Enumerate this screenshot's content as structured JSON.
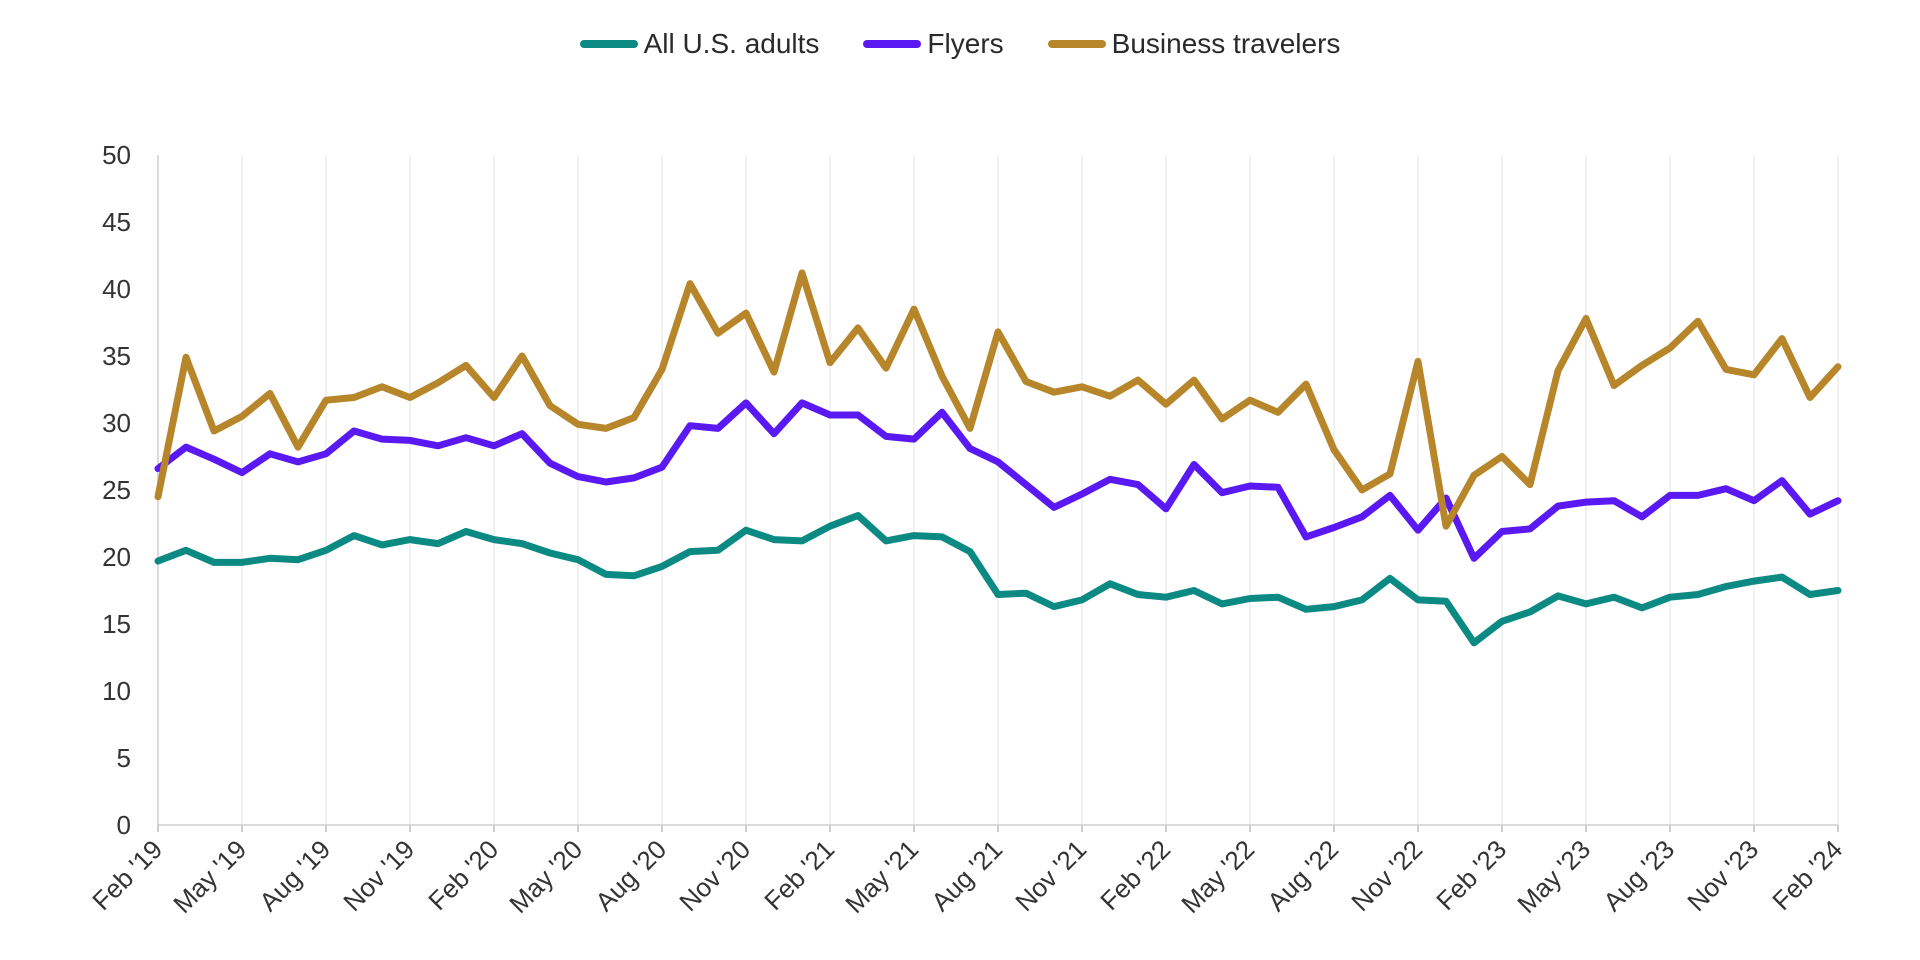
{
  "chart_data": {
    "type": "line",
    "title": "",
    "xlabel": "",
    "ylabel": "",
    "ylim": [
      0,
      50
    ],
    "yticks": [
      0,
      5,
      10,
      15,
      20,
      25,
      30,
      35,
      40,
      45,
      50
    ],
    "xtick_labels": [
      "Feb '19",
      "May '19",
      "Aug '19",
      "Nov '19",
      "Feb '20",
      "May '20",
      "Aug '20",
      "Nov '20",
      "Feb '21",
      "May '21",
      "Aug '21",
      "Nov '21",
      "Feb '22",
      "May '22",
      "Aug '22",
      "Nov '22",
      "Feb '23",
      "May '23",
      "Aug '23",
      "Nov '23",
      "Feb '24"
    ],
    "x": [
      "Feb '19",
      "Mar '19",
      "Apr '19",
      "May '19",
      "Jun '19",
      "Jul '19",
      "Aug '19",
      "Sep '19",
      "Oct '19",
      "Nov '19",
      "Dec '19",
      "Jan '20",
      "Feb '20",
      "Mar '20",
      "Apr '20",
      "May '20",
      "Jun '20",
      "Jul '20",
      "Aug '20",
      "Sep '20",
      "Oct '20",
      "Nov '20",
      "Dec '20",
      "Jan '21",
      "Feb '21",
      "Mar '21",
      "Apr '21",
      "May '21",
      "Jun '21",
      "Jul '21",
      "Aug '21",
      "Sep '21",
      "Oct '21",
      "Nov '21",
      "Dec '21",
      "Jan '22",
      "Feb '22",
      "Mar '22",
      "Apr '22",
      "May '22",
      "Jun '22",
      "Jul '22",
      "Aug '22",
      "Sep '22",
      "Oct '22",
      "Nov '22",
      "Dec '22",
      "Jan '23",
      "Feb '23",
      "Mar '23",
      "Apr '23",
      "May '23",
      "Jun '23",
      "Jul '23",
      "Aug '23",
      "Sep '23",
      "Oct '23",
      "Nov '23",
      "Dec '23",
      "Jan '24",
      "Feb '24"
    ],
    "grid": "vertical",
    "legend_position": "top-center",
    "series": [
      {
        "name": "All U.S. adults",
        "color": "#0b8a83",
        "values": [
          19.7,
          20.5,
          19.6,
          19.6,
          19.9,
          19.8,
          20.5,
          21.6,
          20.9,
          21.3,
          21.0,
          21.9,
          21.3,
          21.0,
          20.3,
          19.8,
          18.7,
          18.6,
          19.3,
          20.4,
          20.5,
          22.0,
          21.3,
          21.2,
          22.3,
          23.1,
          21.2,
          21.6,
          21.5,
          20.4,
          17.2,
          17.3,
          16.3,
          16.8,
          18.0,
          17.2,
          17.0,
          17.5,
          16.5,
          16.9,
          17.0,
          16.1,
          16.3,
          16.8,
          18.4,
          16.8,
          16.7,
          13.6,
          15.2,
          15.9,
          17.1,
          16.5,
          17.0,
          16.2,
          17.0,
          17.2,
          17.8,
          18.2,
          18.5,
          17.2,
          17.5
        ]
      },
      {
        "name": "Flyers",
        "color": "#5a19f2",
        "values": [
          26.6,
          28.2,
          27.3,
          26.3,
          27.7,
          27.1,
          27.7,
          29.4,
          28.8,
          28.7,
          28.3,
          28.9,
          28.3,
          29.2,
          27.0,
          26.0,
          25.6,
          25.9,
          26.7,
          29.8,
          29.6,
          31.5,
          29.2,
          31.5,
          30.6,
          30.6,
          29.0,
          28.8,
          30.8,
          28.1,
          27.1,
          25.4,
          23.7,
          24.7,
          25.8,
          25.4,
          23.6,
          26.9,
          24.8,
          25.3,
          25.2,
          21.5,
          22.2,
          23.0,
          24.6,
          22.0,
          24.4,
          19.9,
          21.9,
          22.1,
          23.8,
          24.1,
          24.2,
          23.0,
          24.6,
          24.6,
          25.1,
          24.2,
          25.7,
          23.2,
          24.2
        ]
      },
      {
        "name": "Business travelers",
        "color": "#b7862b",
        "values": [
          24.5,
          34.9,
          29.4,
          30.5,
          32.2,
          28.2,
          31.7,
          31.9,
          32.7,
          31.9,
          33.0,
          34.3,
          31.9,
          35.0,
          31.3,
          29.9,
          29.6,
          30.4,
          34.0,
          40.4,
          36.7,
          38.2,
          33.8,
          41.2,
          34.5,
          37.1,
          34.1,
          38.5,
          33.5,
          29.6,
          36.8,
          33.1,
          32.3,
          32.7,
          32.0,
          33.2,
          31.4,
          33.2,
          30.3,
          31.7,
          30.8,
          32.9,
          28.0,
          25.0,
          26.2,
          34.6,
          22.3,
          26.1,
          27.5,
          25.4,
          33.9,
          37.8,
          32.8,
          34.3,
          35.6,
          37.6,
          34.0,
          33.6,
          36.3,
          31.9,
          34.2
        ]
      }
    ]
  }
}
